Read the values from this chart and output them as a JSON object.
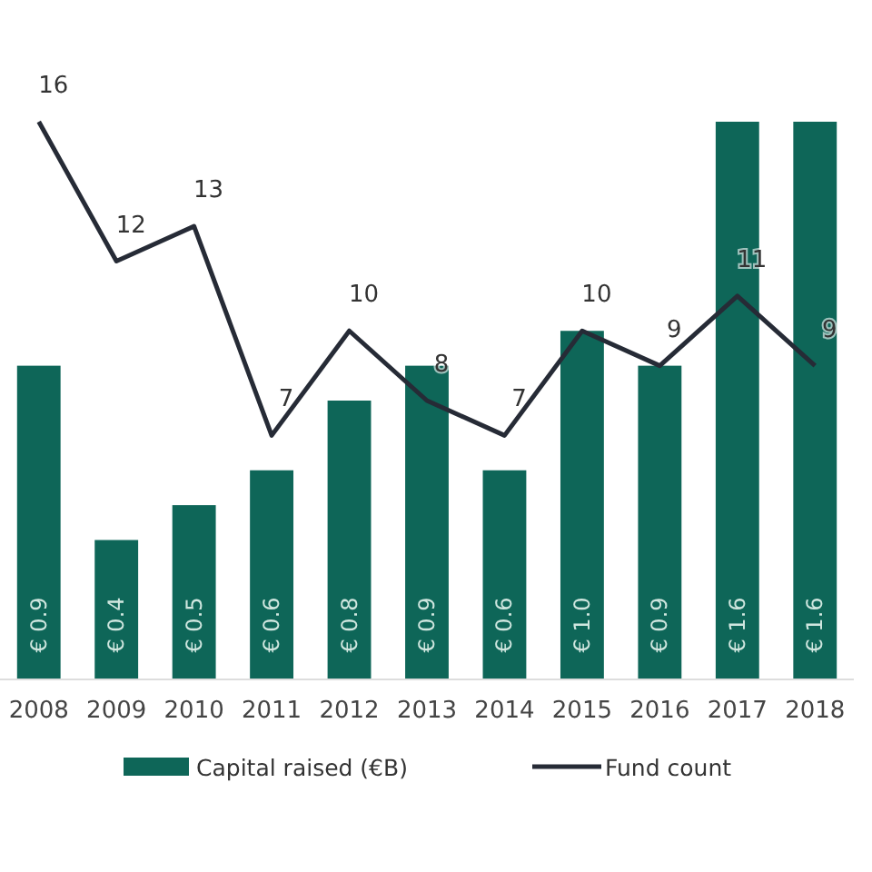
{
  "chart_data": {
    "type": "bar",
    "categories": [
      "2008",
      "2009",
      "2010",
      "2011",
      "2012",
      "2013",
      "2014",
      "2015",
      "2016",
      "2017",
      "2018"
    ],
    "series": [
      {
        "name": "Capital raised (€B)",
        "color": "#0e6658",
        "values": [
          0.9,
          0.4,
          0.5,
          0.6,
          0.8,
          0.9,
          0.6,
          1.0,
          0.9,
          1.6,
          1.6
        ],
        "value_labels": [
          "€ 0.9",
          "€ 0.4",
          "€ 0.5",
          "€ 0.6",
          "€ 0.8",
          "€ 0.9",
          "€ 0.6",
          "€ 1.0",
          "€ 0.9",
          "€ 1.6",
          "€ 1.6"
        ]
      },
      {
        "name": "Fund count",
        "type": "line",
        "axis": "y2",
        "color": "#262b36",
        "values": [
          16,
          12,
          13,
          7,
          10,
          8,
          7,
          10,
          9,
          11,
          9
        ],
        "value_labels": [
          "16",
          "12",
          "13",
          "7",
          "10",
          "8",
          "7",
          "10",
          "9",
          "11",
          "9"
        ]
      }
    ],
    "ylim": [
      0,
      1.6
    ],
    "y2lim": [
      0,
      16
    ],
    "tick_labels": "x",
    "legend": "bottom",
    "marker": "none",
    "line_style": "solid"
  }
}
